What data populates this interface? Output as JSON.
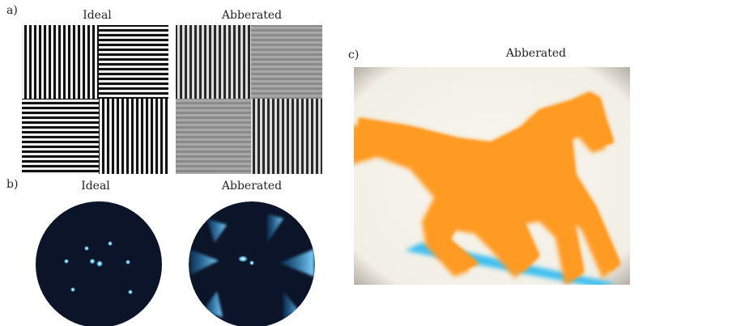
{
  "panels": {
    "a": {
      "label": "a)",
      "titles": [
        "Ideal",
        "Abberated"
      ]
    },
    "b": {
      "label": "b)",
      "titles": [
        "Ideal",
        "Abberated"
      ]
    },
    "c": {
      "label": "c)",
      "title": "Abberated"
    }
  }
}
